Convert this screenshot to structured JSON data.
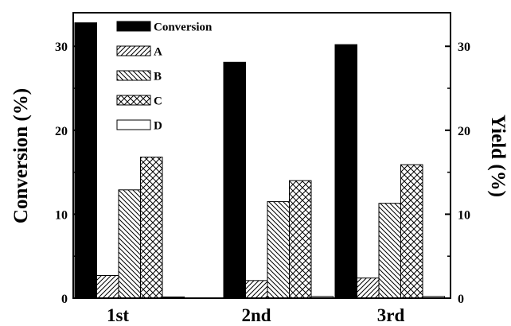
{
  "chart_data": {
    "type": "bar",
    "categories": [
      "1st",
      "2nd",
      "3rd"
    ],
    "series": [
      {
        "name": "Conversion",
        "values": [
          32.8,
          28.1,
          30.2
        ],
        "axis": "left",
        "pattern": "solid"
      },
      {
        "name": "A",
        "values": [
          2.7,
          2.1,
          2.4
        ],
        "axis": "right",
        "pattern": "diag-forward"
      },
      {
        "name": "B",
        "values": [
          12.9,
          11.5,
          11.3
        ],
        "axis": "right",
        "pattern": "diag-back"
      },
      {
        "name": "C",
        "values": [
          16.8,
          14.0,
          15.9
        ],
        "axis": "right",
        "pattern": "crosshatch"
      },
      {
        "name": "D",
        "values": [
          0.15,
          0.2,
          0.2
        ],
        "axis": "right",
        "pattern": "empty"
      }
    ],
    "ylabel": "Conversion (%)",
    "y2label": "Yield (%)",
    "ylim": [
      0,
      34
    ],
    "y2lim": [
      0,
      34
    ],
    "yticks": [
      0,
      10,
      20,
      30
    ],
    "legend_position": "top-left"
  }
}
